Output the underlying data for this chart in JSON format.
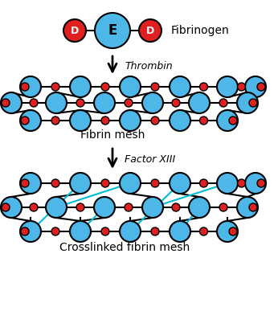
{
  "bg_color": "#ffffff",
  "blue_color": "#4db8e8",
  "red_color": "#e02020",
  "cyan_color": "#00bcd4",
  "line_color": "#000000",
  "title": "Fibrinogen",
  "fibrin_label": "Fibrin mesh",
  "crosslinked_label": "Crosslinked fibrin mesh",
  "thrombin_label": "Thrombin",
  "factorXIII_label": "Factor XIII",
  "figsize": [
    3.46,
    3.87
  ],
  "dpi": 100
}
